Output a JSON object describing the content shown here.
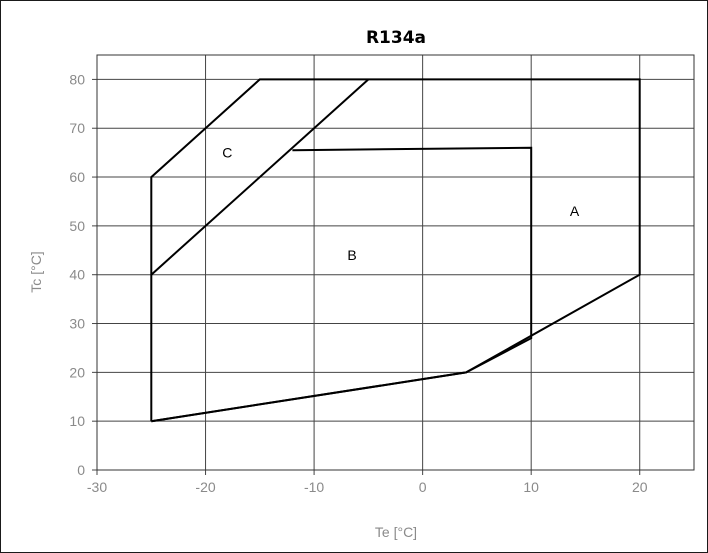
{
  "chart_data": {
    "type": "line",
    "title": "R134a",
    "xlabel": "Te [°C]",
    "ylabel": "Tc [°C]",
    "xlim": [
      -30,
      25
    ],
    "ylim": [
      0,
      85
    ],
    "xticks": [
      -30,
      -20,
      -10,
      0,
      10,
      20
    ],
    "yticks": [
      0,
      10,
      20,
      30,
      40,
      50,
      60,
      70,
      80
    ],
    "grid": true,
    "series": [
      {
        "name": "A",
        "points": [
          [
            -25,
            10
          ],
          [
            4,
            20
          ],
          [
            20,
            40
          ],
          [
            20,
            80
          ],
          [
            -15,
            80
          ],
          [
            -25,
            60
          ],
          [
            -25,
            10
          ]
        ]
      },
      {
        "name": "B",
        "points": [
          [
            -25,
            10
          ],
          [
            4,
            20
          ],
          [
            10,
            27
          ],
          [
            10,
            66
          ],
          [
            -12,
            65.5
          ]
        ]
      },
      {
        "name": "C",
        "points": [
          [
            -25,
            40
          ],
          [
            -5,
            80
          ]
        ]
      }
    ],
    "region_labels": [
      {
        "text": "A",
        "x": 14,
        "y": 53
      },
      {
        "text": "B",
        "x": -6.5,
        "y": 44
      },
      {
        "text": "C",
        "x": -18,
        "y": 65
      }
    ]
  }
}
